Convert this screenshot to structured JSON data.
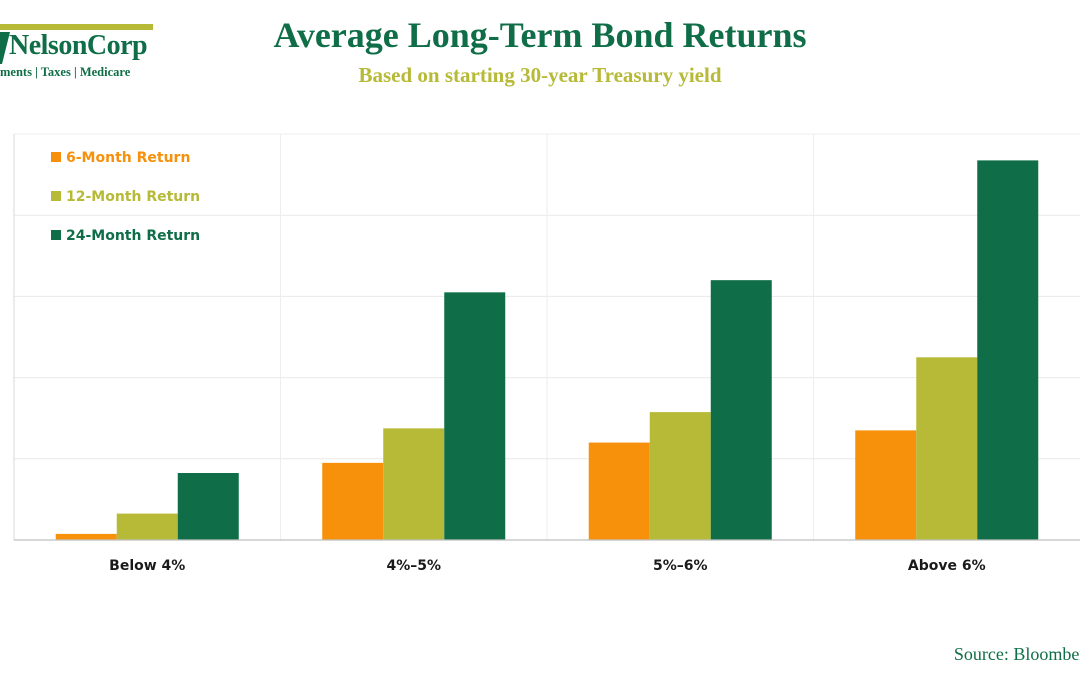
{
  "logo": {
    "name": "NelsonCorp",
    "tagline": "ments | Taxes | Medicare"
  },
  "title": "Average Long-Term Bond Returns",
  "subtitle": "Based on starting 30-year Treasury yield",
  "source": "Source: Bloomberg",
  "colors": {
    "green": "#0f6e47",
    "olive": "#b6ba36",
    "orange": "#f7900a"
  },
  "chart_data": {
    "type": "bar",
    "categories": [
      "Below 4%",
      "4%–5%",
      "5%–6%",
      "Above 6%"
    ],
    "series": [
      {
        "name": "6-Month Return",
        "color": "#f7900a",
        "values": [
          0.15,
          1.9,
          2.4,
          2.7
        ]
      },
      {
        "name": "12-Month Return",
        "color": "#b6ba36",
        "values": [
          0.65,
          2.75,
          3.15,
          4.5
        ]
      },
      {
        "name": "24-Month Return",
        "color": "#0f6e47",
        "values": [
          1.65,
          6.1,
          6.4,
          9.35
        ]
      }
    ],
    "ylim": [
      0,
      10
    ],
    "grid": true,
    "y_tick_labels_shown": false,
    "legend_position": "top-left"
  }
}
